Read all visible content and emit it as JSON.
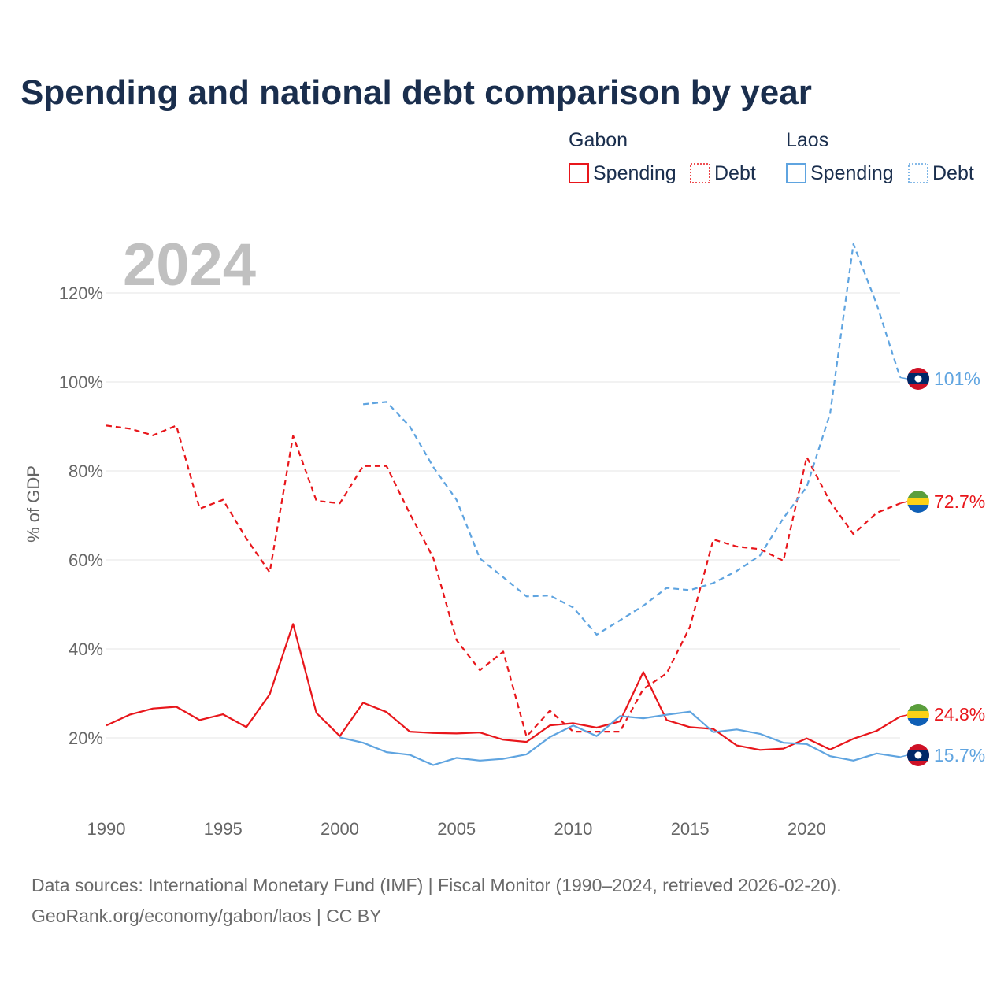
{
  "chart_data": {
    "type": "line",
    "title": "Spending and national debt comparison by year",
    "year_label": "2024",
    "ylabel": "% of GDP",
    "xlim": [
      1990,
      2024
    ],
    "ylim": [
      8,
      135
    ],
    "yticks": [
      20,
      40,
      60,
      80,
      100,
      120
    ],
    "ytick_labels": [
      "20%",
      "40%",
      "60%",
      "80%",
      "100%",
      "120%"
    ],
    "xticks": [
      1990,
      1995,
      2000,
      2005,
      2010,
      2015,
      2020
    ],
    "xtick_labels": [
      "1990",
      "1995",
      "2000",
      "2005",
      "2010",
      "2015",
      "2020"
    ],
    "legend": {
      "groups": [
        {
          "country": "Gabon",
          "items": [
            "Spending",
            "Debt"
          ],
          "color": "#e8161b"
        },
        {
          "country": "Laos",
          "items": [
            "Spending",
            "Debt"
          ],
          "color": "#5fa4e0"
        }
      ]
    },
    "series": [
      {
        "name": "Gabon Debt",
        "country": "Gabon",
        "metric": "Debt",
        "color": "#e8161b",
        "dashed": true,
        "x": [
          1990,
          1991,
          1992,
          1993,
          1994,
          1995,
          1996,
          1997,
          1998,
          1999,
          2000,
          2001,
          2002,
          2003,
          2004,
          2005,
          2006,
          2007,
          2008,
          2009,
          2010,
          2011,
          2012,
          2013,
          2014,
          2015,
          2016,
          2017,
          2018,
          2019,
          2020,
          2021,
          2022,
          2023,
          2024
        ],
        "values": [
          90.2,
          89.5,
          88.0,
          90.2,
          71.5,
          73.5,
          64.8,
          57.2,
          87.9,
          73.3,
          72.7,
          81.1,
          81.1,
          70.4,
          60.5,
          42.0,
          35.2,
          39.4,
          20.3,
          26.1,
          21.4,
          21.4,
          21.4,
          31.0,
          34.5,
          45.0,
          64.6,
          63.0,
          62.4,
          59.8,
          83.1,
          73.1,
          65.8,
          70.6,
          72.7
        ],
        "end_label": "72.7%"
      },
      {
        "name": "Laos Debt",
        "country": "Laos",
        "metric": "Debt",
        "color": "#5fa4e0",
        "dashed": true,
        "x": [
          2001,
          2002,
          2003,
          2004,
          2005,
          2006,
          2007,
          2008,
          2009,
          2010,
          2011,
          2012,
          2013,
          2014,
          2015,
          2016,
          2017,
          2018,
          2019,
          2020,
          2021,
          2022,
          2023,
          2024
        ],
        "values": [
          95.0,
          95.5,
          90.0,
          80.9,
          73.5,
          60.3,
          56.1,
          51.8,
          52.0,
          49.3,
          43.2,
          46.4,
          49.7,
          53.7,
          53.2,
          54.8,
          57.5,
          61.0,
          69.4,
          76.4,
          92.9,
          131.0,
          117.4,
          101.0
        ],
        "end_label": "101%"
      },
      {
        "name": "Gabon Spending",
        "country": "Gabon",
        "metric": "Spending",
        "color": "#e8161b",
        "dashed": false,
        "x": [
          1990,
          1991,
          1992,
          1993,
          1994,
          1995,
          1996,
          1997,
          1998,
          1999,
          2000,
          2001,
          2002,
          2003,
          2004,
          2005,
          2006,
          2007,
          2008,
          2009,
          2010,
          2011,
          2012,
          2013,
          2014,
          2015,
          2016,
          2017,
          2018,
          2019,
          2020,
          2021,
          2022,
          2023,
          2024
        ],
        "values": [
          22.8,
          25.2,
          26.6,
          27.0,
          24.0,
          25.3,
          22.4,
          29.8,
          45.6,
          25.6,
          20.4,
          27.9,
          25.8,
          21.4,
          21.1,
          21.0,
          21.2,
          19.6,
          19.1,
          22.8,
          23.3,
          22.3,
          23.7,
          34.8,
          24.0,
          22.4,
          22.0,
          18.3,
          17.3,
          17.6,
          19.9,
          17.4,
          19.8,
          21.6,
          24.8
        ],
        "end_label": "24.8%"
      },
      {
        "name": "Laos Spending",
        "country": "Laos",
        "metric": "Spending",
        "color": "#5fa4e0",
        "dashed": false,
        "x": [
          2000,
          2001,
          2002,
          2003,
          2004,
          2005,
          2006,
          2007,
          2008,
          2009,
          2010,
          2011,
          2012,
          2013,
          2014,
          2015,
          2016,
          2017,
          2018,
          2019,
          2020,
          2021,
          2022,
          2023,
          2024
        ],
        "values": [
          20.1,
          18.9,
          16.8,
          16.2,
          13.9,
          15.5,
          14.9,
          15.3,
          16.3,
          20.2,
          22.8,
          20.4,
          24.9,
          24.4,
          25.2,
          25.9,
          21.3,
          21.9,
          20.9,
          18.9,
          18.6,
          15.9,
          14.9,
          16.5,
          15.7
        ],
        "end_label": "15.7%"
      }
    ]
  },
  "flags": [
    {
      "country": "Laos",
      "icon": "laos-flag-icon",
      "colors": [
        "#ce1126",
        "#002868",
        "#ffffff"
      ]
    },
    {
      "country": "Gabon",
      "icon": "gabon-flag-icon",
      "colors": [
        "#5a9e3c",
        "#fcd116",
        "#0f5fb5"
      ]
    }
  ],
  "source": {
    "line1": "Data sources: International Monetary Fund (IMF) | Fiscal Monitor (1990–2024, retrieved 2026-02-20).",
    "line2": "GeoRank.org/economy/gabon/laos | CC BY"
  }
}
